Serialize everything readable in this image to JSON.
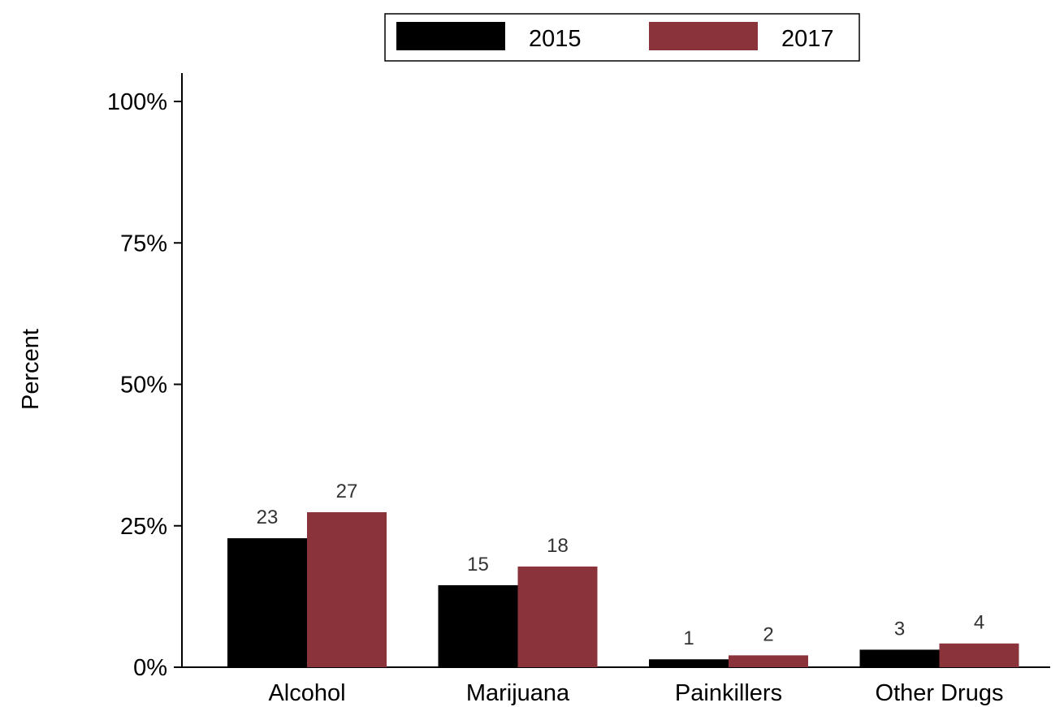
{
  "chart_data": {
    "type": "bar",
    "title": "",
    "xlabel": "",
    "ylabel": "Percent",
    "ylim": [
      0,
      100
    ],
    "yticks": [
      0,
      25,
      50,
      75,
      100
    ],
    "ytick_labels": [
      "0%",
      "25%",
      "50%",
      "75%",
      "100%"
    ],
    "categories": [
      "Alcohol",
      "Marijuana",
      "Painkillers",
      "Other Drugs"
    ],
    "series": [
      {
        "name": "2015",
        "color": "#000000",
        "values": [
          22.8,
          14.5,
          1.4,
          3.1
        ],
        "labels": [
          "23",
          "15",
          "1",
          "3"
        ]
      },
      {
        "name": "2017",
        "color": "#8b333b",
        "values": [
          27.4,
          17.8,
          2.1,
          4.2
        ],
        "labels": [
          "27",
          "18",
          "2",
          "4"
        ]
      }
    ],
    "legend": {
      "placement": "top-center",
      "entries": [
        "2015",
        "2017"
      ]
    },
    "grid": false
  }
}
